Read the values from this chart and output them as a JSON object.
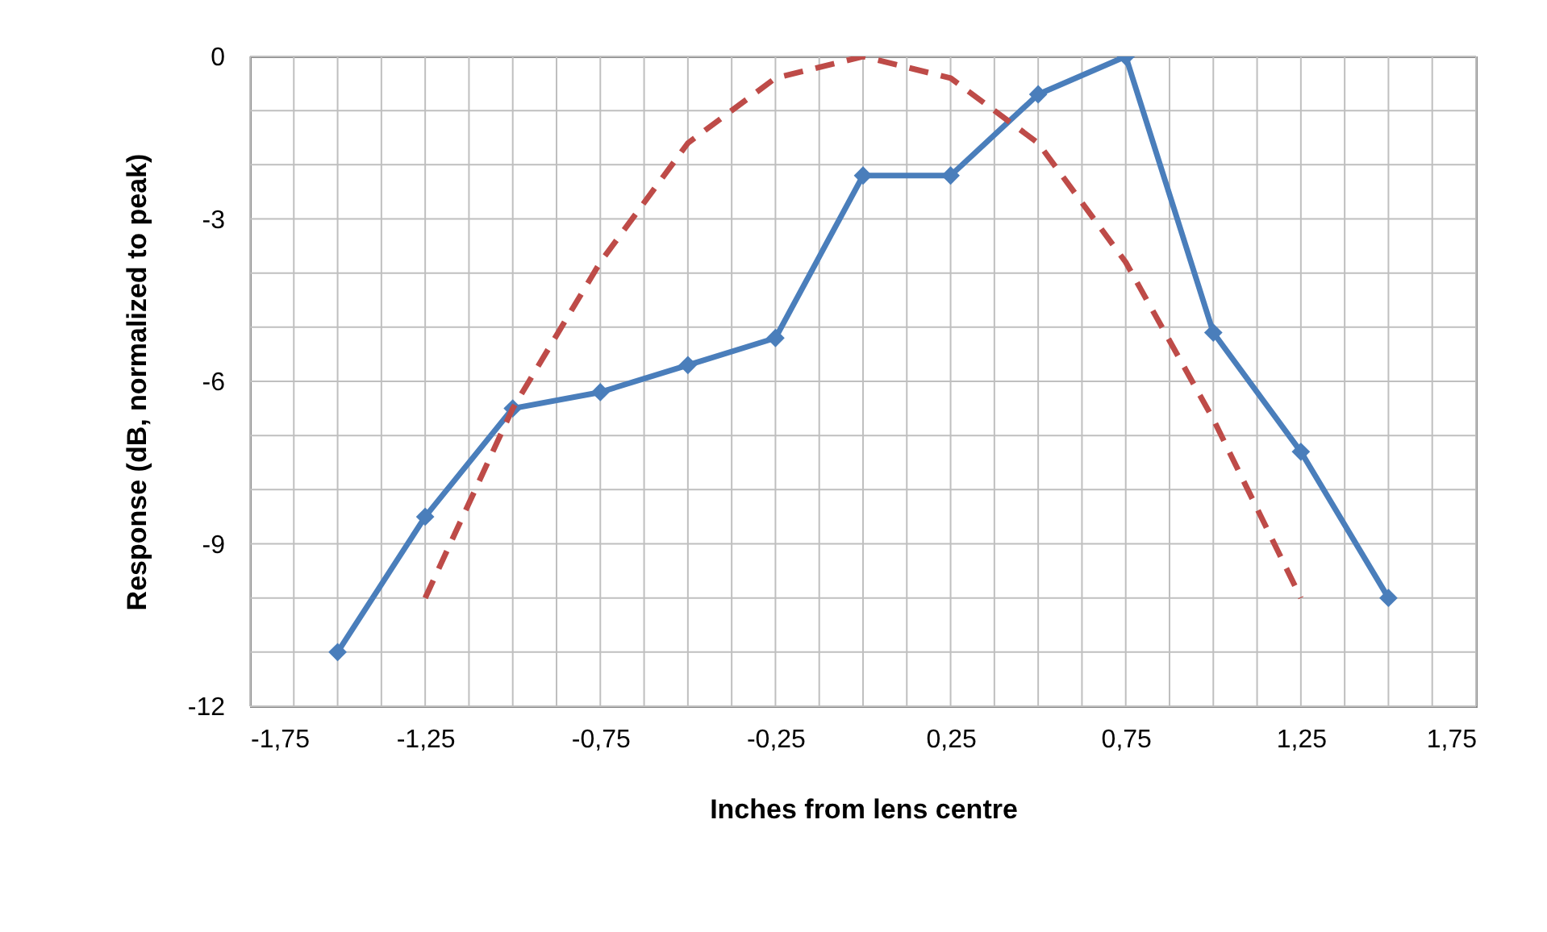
{
  "chart_data": {
    "type": "line",
    "xlabel": "Inches from lens centre",
    "ylabel": "Response (dB, normalized to peak)",
    "series": [
      {
        "color": "#4a7ebb",
        "marker": "diamond",
        "line_style": "solid",
        "x": [
          -1.5,
          -1.25,
          -1,
          -0.75,
          -0.5,
          -0.25,
          0,
          0.25,
          0.5,
          0.75,
          1,
          1.25,
          1.5
        ],
        "values": [
          -11,
          -8.5,
          -6.5,
          -6.2,
          -5.7,
          -5.2,
          -2.2,
          -2.2,
          -0.7,
          0,
          -5.1,
          -7.3,
          -10
        ]
      },
      {
        "color": "#be4b48",
        "marker": "none",
        "line_style": "dashed",
        "x": [
          -1.25,
          -1,
          -0.75,
          -0.5,
          -0.25,
          0,
          0.25,
          0.5,
          0.75,
          1,
          1.25
        ],
        "values": [
          -10,
          -6.5,
          -3.8,
          -1.6,
          -0.4,
          0,
          -0.4,
          -1.6,
          -3.8,
          -6.7,
          -10
        ]
      }
    ],
    "xlim": [
      -1.75,
      1.75
    ],
    "xticks": [
      {
        "value": -1.75,
        "label": "-1,75"
      },
      {
        "value": -1.625,
        "label": null
      },
      {
        "value": -1.5,
        "label": null
      },
      {
        "value": -1.375,
        "label": null
      },
      {
        "value": -1.25,
        "label": "-1,25"
      },
      {
        "value": -1.125,
        "label": null
      },
      {
        "value": -1,
        "label": null
      },
      {
        "value": -0.875,
        "label": null
      },
      {
        "value": -0.75,
        "label": "-0,75"
      },
      {
        "value": -0.625,
        "label": null
      },
      {
        "value": -0.5,
        "label": null
      },
      {
        "value": -0.375,
        "label": null
      },
      {
        "value": -0.25,
        "label": "-0,25"
      },
      {
        "value": -0.125,
        "label": null
      },
      {
        "value": 0,
        "label": null
      },
      {
        "value": 0.125,
        "label": null
      },
      {
        "value": 0.25,
        "label": "0,25"
      },
      {
        "value": 0.375,
        "label": null
      },
      {
        "value": 0.5,
        "label": null
      },
      {
        "value": 0.625,
        "label": null
      },
      {
        "value": 0.75,
        "label": "0,75"
      },
      {
        "value": 0.875,
        "label": null
      },
      {
        "value": 1,
        "label": null
      },
      {
        "value": 1.125,
        "label": null
      },
      {
        "value": 1.25,
        "label": "1,25"
      },
      {
        "value": 1.375,
        "label": null
      },
      {
        "value": 1.5,
        "label": null
      },
      {
        "value": 1.625,
        "label": null
      },
      {
        "value": 1.75,
        "label": "1,75"
      }
    ],
    "ylim": [
      -12,
      0
    ],
    "yticks": [
      -12,
      {
        "value": -11,
        "label": null
      },
      {
        "value": -10,
        "label": null
      },
      -9,
      {
        "value": -8,
        "label": null
      },
      {
        "value": -7,
        "label": null
      },
      -6,
      {
        "value": -5,
        "label": null
      },
      {
        "value": -4,
        "label": null
      },
      -3,
      {
        "value": -2,
        "label": null
      },
      {
        "value": -1,
        "label": null
      },
      0
    ],
    "grid": true
  }
}
